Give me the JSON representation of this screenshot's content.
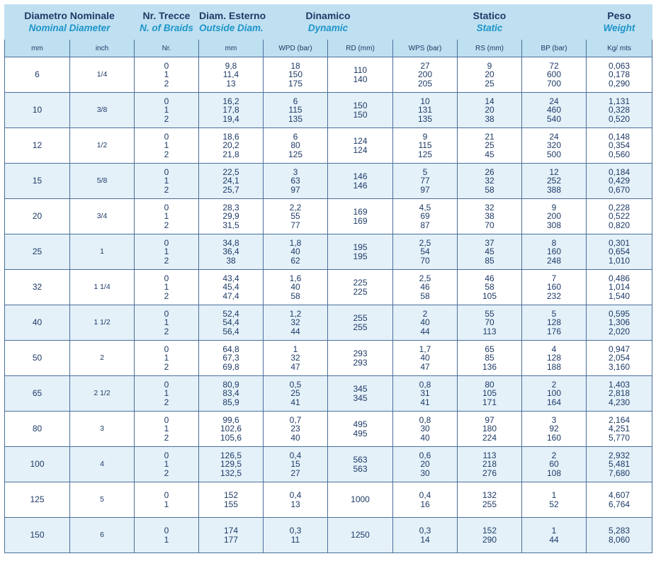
{
  "header": {
    "groups": [
      {
        "it": "Diametro Nominale",
        "en": "Nominal Diameter"
      },
      {
        "it": "Nr. Trecce",
        "en": "N. of Braids"
      },
      {
        "it": "Diam. Esterno",
        "en": "Outside Diam."
      },
      {
        "it": "Dinamico",
        "en": "Dynamic"
      },
      {
        "it": "Statico",
        "en": "Static"
      },
      {
        "it": "Peso",
        "en": "Weight"
      }
    ],
    "subcolumns": [
      "mm",
      "inch",
      "Nr.",
      "mm",
      "WPD (bar)",
      "RD (mm)",
      "WPS (bar)",
      "RS (mm)",
      "BP (bar)",
      "Kg/ mts"
    ]
  },
  "rows": [
    {
      "mm": "6",
      "inch": "1/4",
      "nr": [
        "0",
        "1",
        "2"
      ],
      "od": [
        "9,8",
        "11,4",
        "13"
      ],
      "wpd": [
        "18",
        "150",
        "175"
      ],
      "rd": [
        "110",
        "140"
      ],
      "wps": [
        "27",
        "200",
        "205"
      ],
      "rs": [
        "9",
        "20",
        "25"
      ],
      "bp": [
        "72",
        "600",
        "700"
      ],
      "kg": [
        "0,063",
        "0,178",
        "0,290"
      ]
    },
    {
      "mm": "10",
      "inch": "3/8",
      "nr": [
        "0",
        "1",
        "2"
      ],
      "od": [
        "16,2",
        "17,8",
        "19,4"
      ],
      "wpd": [
        "6",
        "115",
        "135"
      ],
      "rd": [
        "150",
        "150"
      ],
      "wps": [
        "10",
        "131",
        "135"
      ],
      "rs": [
        "14",
        "20",
        "38"
      ],
      "bp": [
        "24",
        "460",
        "540"
      ],
      "kg": [
        "1,131",
        "0,328",
        "0,520"
      ]
    },
    {
      "mm": "12",
      "inch": "1/2",
      "nr": [
        "0",
        "1",
        "2"
      ],
      "od": [
        "18,6",
        "20,2",
        "21,8"
      ],
      "wpd": [
        "6",
        "80",
        "125"
      ],
      "rd": [
        "124",
        "124"
      ],
      "wps": [
        "9",
        "115",
        "125"
      ],
      "rs": [
        "21",
        "25",
        "45"
      ],
      "bp": [
        "24",
        "320",
        "500"
      ],
      "kg": [
        "0,148",
        "0,354",
        "0,560"
      ]
    },
    {
      "mm": "15",
      "inch": "5/8",
      "nr": [
        "0",
        "1",
        "2"
      ],
      "od": [
        "22,5",
        "24,1",
        "25,7"
      ],
      "wpd": [
        "3",
        "63",
        "97"
      ],
      "rd": [
        "146",
        "146"
      ],
      "wps": [
        "5",
        "77",
        "97"
      ],
      "rs": [
        "26",
        "32",
        "58"
      ],
      "bp": [
        "12",
        "252",
        "388"
      ],
      "kg": [
        "0,184",
        "0,429",
        "0,670"
      ]
    },
    {
      "mm": "20",
      "inch": "3/4",
      "nr": [
        "0",
        "1",
        "2"
      ],
      "od": [
        "28,3",
        "29,9",
        "31,5"
      ],
      "wpd": [
        "2,2",
        "55",
        "77"
      ],
      "rd": [
        "169",
        "169"
      ],
      "wps": [
        "4,5",
        "69",
        "87"
      ],
      "rs": [
        "32",
        "38",
        "70"
      ],
      "bp": [
        "9",
        "200",
        "308"
      ],
      "kg": [
        "0,228",
        "0,522",
        "0,820"
      ]
    },
    {
      "mm": "25",
      "inch": "1",
      "nr": [
        "0",
        "1",
        "2"
      ],
      "od": [
        "34,8",
        "36,4",
        "38"
      ],
      "wpd": [
        "1,8",
        "40",
        "62"
      ],
      "rd": [
        "195",
        "195"
      ],
      "wps": [
        "2,5",
        "54",
        "70"
      ],
      "rs": [
        "37",
        "45",
        "85"
      ],
      "bp": [
        "8",
        "160",
        "248"
      ],
      "kg": [
        "0,301",
        "0,654",
        "1,010"
      ]
    },
    {
      "mm": "32",
      "inch": "1 1/4",
      "nr": [
        "0",
        "1",
        "2"
      ],
      "od": [
        "43,4",
        "45,4",
        "47,4"
      ],
      "wpd": [
        "1,6",
        "40",
        "58"
      ],
      "rd": [
        "225",
        "225"
      ],
      "wps": [
        "2,5",
        "46",
        "58"
      ],
      "rs": [
        "46",
        "58",
        "105"
      ],
      "bp": [
        "7",
        "160",
        "232"
      ],
      "kg": [
        "0,486",
        "1,014",
        "1,540"
      ]
    },
    {
      "mm": "40",
      "inch": "1 1/2",
      "nr": [
        "0",
        "1",
        "2"
      ],
      "od": [
        "52,4",
        "54,4",
        "56,4"
      ],
      "wpd": [
        "1,2",
        "32",
        "44"
      ],
      "rd": [
        "255",
        "255"
      ],
      "wps": [
        "2",
        "40",
        "44"
      ],
      "rs": [
        "55",
        "70",
        "113"
      ],
      "bp": [
        "5",
        "128",
        "176"
      ],
      "kg": [
        "0,595",
        "1,306",
        "2,020"
      ]
    },
    {
      "mm": "50",
      "inch": "2",
      "nr": [
        "0",
        "1",
        "2"
      ],
      "od": [
        "64,8",
        "67,3",
        "69,8"
      ],
      "wpd": [
        "1",
        "32",
        "47"
      ],
      "rd": [
        "293",
        "293"
      ],
      "wps": [
        "1,7",
        "40",
        "47"
      ],
      "rs": [
        "65",
        "85",
        "136"
      ],
      "bp": [
        "4",
        "128",
        "188"
      ],
      "kg": [
        "0,947",
        "2,054",
        "3,160"
      ]
    },
    {
      "mm": "65",
      "inch": "2 1/2",
      "nr": [
        "0",
        "1",
        "2"
      ],
      "od": [
        "80,9",
        "83,4",
        "85,9"
      ],
      "wpd": [
        "0,5",
        "25",
        "41"
      ],
      "rd": [
        "345",
        "345"
      ],
      "wps": [
        "0,8",
        "31",
        "41"
      ],
      "rs": [
        "80",
        "105",
        "171"
      ],
      "bp": [
        "2",
        "100",
        "164"
      ],
      "kg": [
        "1,403",
        "2,818",
        "4,230"
      ]
    },
    {
      "mm": "80",
      "inch": "3",
      "nr": [
        "0",
        "1",
        "2"
      ],
      "od": [
        "99,6",
        "102,6",
        "105,6"
      ],
      "wpd": [
        "0,7",
        "23",
        "40"
      ],
      "rd": [
        "495",
        "495"
      ],
      "wps": [
        "0,8",
        "30",
        "40"
      ],
      "rs": [
        "97",
        "180",
        "224"
      ],
      "bp": [
        "3",
        "92",
        "160"
      ],
      "kg": [
        "2,164",
        "4,251",
        "5,770"
      ]
    },
    {
      "mm": "100",
      "inch": "4",
      "nr": [
        "0",
        "1",
        "2"
      ],
      "od": [
        "126,5",
        "129,5",
        "132,5"
      ],
      "wpd": [
        "0,4",
        "15",
        "27"
      ],
      "rd": [
        "563",
        "563"
      ],
      "wps": [
        "0,6",
        "20",
        "30"
      ],
      "rs": [
        "113",
        "218",
        "276"
      ],
      "bp": [
        "2",
        "60",
        "108"
      ],
      "kg": [
        "2,932",
        "5,481",
        "7,680"
      ]
    },
    {
      "mm": "125",
      "inch": "5",
      "nr": [
        "0",
        "1"
      ],
      "od": [
        "152",
        "155"
      ],
      "wpd": [
        "0,4",
        "13"
      ],
      "rd": [
        "1000"
      ],
      "wps": [
        "0,4",
        "16"
      ],
      "rs": [
        "132",
        "255"
      ],
      "bp": [
        "1",
        "52"
      ],
      "kg": [
        "4,607",
        "6,764"
      ]
    },
    {
      "mm": "150",
      "inch": "6",
      "nr": [
        "0",
        "1"
      ],
      "od": [
        "174",
        "177"
      ],
      "wpd": [
        "0,3",
        "11"
      ],
      "rd": [
        "1250"
      ],
      "wps": [
        "0,3",
        "14"
      ],
      "rs": [
        "152",
        "290"
      ],
      "bp": [
        "1",
        "44"
      ],
      "kg": [
        "5,283",
        "8,060"
      ]
    }
  ]
}
